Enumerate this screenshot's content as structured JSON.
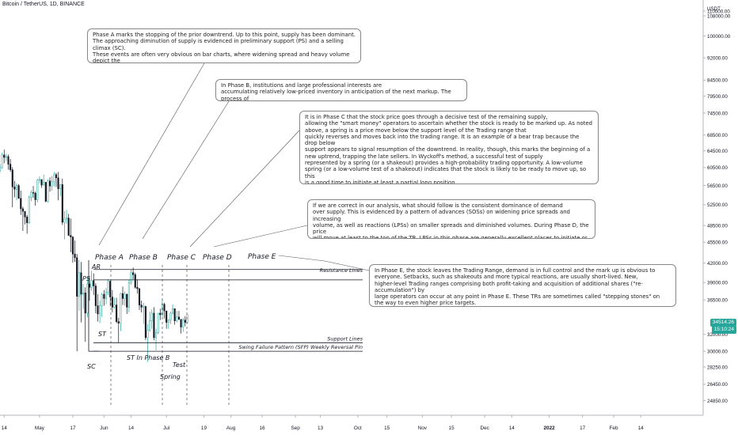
{
  "header": {
    "title": "Bitcoin / TetherUS, 1D, BINANCE"
  },
  "price_axis": {
    "currency_label": "USDT",
    "last_price": "34514.26",
    "countdown": "15:10:24",
    "ticks": [
      "110000.00",
      "108000.00",
      "100000.00",
      "92000.00",
      "84500.00",
      "79500.00",
      "74500.00",
      "68500.00",
      "64500.00",
      "60500.00",
      "56500.00",
      "52500.00",
      "48500.00",
      "45500.00",
      "42000.00",
      "39000.00",
      "36500.00",
      "32000.00",
      "30000.00",
      "28250.00",
      "26450.00",
      "24850.00"
    ]
  },
  "time_axis": {
    "ticks": [
      "14",
      "May",
      "17",
      "Jun",
      "14",
      "Jul",
      "19",
      "Aug",
      "16",
      "Sep",
      "13",
      "Oct",
      "15",
      "Nov",
      "15",
      "Dec",
      "14",
      "2022",
      "17",
      "Feb",
      "14"
    ]
  },
  "notes": [
    {
      "id": "phase-a-note",
      "text": "Phase A marks the stopping of the prior downtrend. Up to this point, supply has been dominant.\nThe approaching diminution of supply is evidenced in preliminary support (PS) and a selling climax (SC).\nThese events are often very obvious on bar charts, where widening spread and heavy volume depict the\ntransfer of huge numbers of shares from the public to large professional interests."
    },
    {
      "id": "phase-b-note",
      "text": "In Phase B, institutions and large professional interests are\naccumulating relatively low-priced inventory in anticipation of the next markup. The process of"
    },
    {
      "id": "phase-c-note",
      "text": "It is in Phase C that the stock price goes through a decisive test of the remaining supply,\nallowing the \"smart money\" operators to ascertain whether the stock is ready to be marked up. As noted\nabove, a spring is a price move below the support level of the Trading range that\nquickly reverses and moves back into the trading range. It is an example of a bear trap because the drop below\nsupport appears to signal resumption of the downtrend. In reality, though, this marks the beginning of a\nnew uptrend, trapping the late sellers. In Wyckoff's method, a successful test of supply\nrepresented by a spring (or a shakeout) provides a high-probability trading opportunity. A low-volume\nspring (or a low-volume test of a shakeout) indicates that the stock is likely to be ready to move up, so this\nis a good time to initiate at least a partial long position."
    },
    {
      "id": "phase-d-note",
      "text": "If we are correct in our analysis, what should follow is the consistent dominance of demand\nover supply. This is evidenced by a pattern of advances (SOSs) on widening price spreads and increasing\nvolume, as well as reactions (LPSs) on smaller spreads and diminished volumes. During Phase D, the price\nwill move at least to the top of the TR. LPSs in this phase are generally excellent places to initiate or add to\nprofitable long positions."
    },
    {
      "id": "phase-e-note",
      "text": " In Phase E, the stock leaves the Trading Range, demand is in full control and the mark up is obvious to\neveryone. Setbacks, such as shakeouts and more typical reactions, are usually short-lived. New,\nhigher-level Trading ranges comprising both profit-taking and acquisition of additional shares (\"re-accumulation\") by\nlarge operators can occur at any point in Phase E. These TRs are sometimes called \"stepping stones\" on\nthe way to even higher price targets."
    }
  ],
  "labels": {
    "phase_a": "Phase A",
    "phase_b": "Phase B",
    "phase_c": "Phase C",
    "phase_d": "Phase D",
    "phase_e": "Phase E",
    "ps": "PS",
    "ar": "AR",
    "sc": "SC",
    "st": "ST",
    "st_phase_b": "ST In Phase B",
    "test": "Test",
    "spring": "Spring",
    "resistance": "Resistance Lines",
    "support": "Support Lines",
    "sfp": "Swing Failure Pattern (SFP) Weekly Reversal Pin"
  },
  "colors": {
    "candle_up": "#26a69a",
    "candle_down": "#131722",
    "line": "#131722",
    "note_border": "#8a8a8a"
  },
  "chart_data": {
    "type": "candlestick",
    "title": "Bitcoin / TetherUS, 1D, BINANCE",
    "y_scale": "log",
    "ylim": [
      23500,
      112000
    ],
    "x_range": [
      "2021-04-12",
      "2022-03-16"
    ],
    "candles": [
      [
        "2021-04-12",
        59800,
        61300,
        59300,
        60500
      ],
      [
        "2021-04-13",
        60500,
        64000,
        60200,
        63500
      ],
      [
        "2021-04-14",
        63500,
        64800,
        61500,
        62900
      ],
      [
        "2021-04-15",
        62900,
        63800,
        62000,
        63100
      ],
      [
        "2021-04-16",
        63100,
        63600,
        60000,
        61300
      ],
      [
        "2021-04-17",
        61300,
        62500,
        59500,
        60000
      ],
      [
        "2021-04-18",
        60000,
        60600,
        52000,
        56200
      ],
      [
        "2021-04-19",
        56200,
        57500,
        54000,
        55700
      ],
      [
        "2021-04-20",
        55700,
        57000,
        53400,
        56500
      ],
      [
        "2021-04-21",
        56500,
        56800,
        53700,
        53800
      ],
      [
        "2021-04-22",
        53800,
        55400,
        50500,
        51700
      ],
      [
        "2021-04-23",
        51700,
        52100,
        47500,
        51200
      ],
      [
        "2021-04-24",
        51200,
        51200,
        48700,
        50100
      ],
      [
        "2021-04-25",
        50100,
        50500,
        47000,
        49000
      ],
      [
        "2021-04-26",
        49000,
        54400,
        48800,
        54000
      ],
      [
        "2021-04-27",
        54000,
        55500,
        53200,
        55000
      ],
      [
        "2021-04-28",
        55000,
        56400,
        53900,
        54900
      ],
      [
        "2021-04-29",
        54900,
        55200,
        52300,
        53500
      ],
      [
        "2021-04-30",
        53500,
        58000,
        53000,
        57700
      ],
      [
        "2021-05-01",
        57700,
        58500,
        57000,
        57800
      ],
      [
        "2021-05-02",
        57800,
        57900,
        56000,
        56600
      ],
      [
        "2021-05-03",
        56600,
        58900,
        56500,
        57200
      ],
      [
        "2021-05-04",
        57200,
        57300,
        53000,
        53200
      ],
      [
        "2021-05-05",
        53200,
        57900,
        52900,
        57500
      ],
      [
        "2021-05-06",
        57500,
        58300,
        55200,
        56400
      ],
      [
        "2021-05-07",
        56400,
        58600,
        55400,
        57300
      ],
      [
        "2021-05-08",
        57300,
        59500,
        56300,
        58900
      ],
      [
        "2021-05-09",
        58900,
        59300,
        56200,
        58200
      ],
      [
        "2021-05-10",
        58200,
        59500,
        53400,
        55800
      ],
      [
        "2021-05-11",
        55800,
        56800,
        54300,
        56700
      ],
      [
        "2021-05-12",
        56700,
        58000,
        48600,
        49100
      ],
      [
        "2021-05-13",
        49100,
        51300,
        46000,
        49700
      ],
      [
        "2021-05-14",
        49700,
        51500,
        48800,
        49900
      ],
      [
        "2021-05-15",
        49900,
        50700,
        46600,
        46700
      ],
      [
        "2021-05-16",
        46700,
        49800,
        43800,
        46400
      ],
      [
        "2021-05-17",
        46400,
        46600,
        42100,
        43500
      ],
      [
        "2021-05-18",
        43500,
        45800,
        42200,
        42900
      ],
      [
        "2021-05-19",
        42900,
        43500,
        30000,
        37000
      ],
      [
        "2021-05-20",
        37000,
        42500,
        35000,
        40500
      ],
      [
        "2021-05-21",
        40500,
        42200,
        33500,
        37300
      ],
      [
        "2021-05-22",
        37300,
        38800,
        35300,
        37500
      ],
      [
        "2021-05-23",
        37500,
        38300,
        31100,
        34700
      ],
      [
        "2021-05-24",
        34700,
        39900,
        34200,
        38800
      ],
      [
        "2021-05-25",
        38800,
        39800,
        36400,
        38300
      ],
      [
        "2021-05-26",
        38300,
        40800,
        37800,
        39300
      ],
      [
        "2021-05-27",
        39300,
        40400,
        37200,
        38500
      ],
      [
        "2021-05-28",
        38500,
        38900,
        34700,
        35700
      ],
      [
        "2021-05-29",
        35700,
        37300,
        33600,
        34600
      ],
      [
        "2021-05-30",
        34600,
        36400,
        33400,
        35700
      ],
      [
        "2021-05-31",
        35700,
        37500,
        34200,
        37300
      ],
      [
        "2021-06-01",
        37300,
        37900,
        35700,
        36700
      ],
      [
        "2021-06-02",
        36700,
        38200,
        35900,
        37600
      ],
      [
        "2021-06-03",
        37600,
        39500,
        37200,
        39200
      ],
      [
        "2021-06-04",
        39200,
        39300,
        35600,
        36900
      ],
      [
        "2021-06-05",
        36900,
        37900,
        34800,
        35500
      ],
      [
        "2021-06-06",
        35500,
        36800,
        35300,
        35800
      ],
      [
        "2021-06-07",
        35800,
        36800,
        33400,
        33600
      ],
      [
        "2021-06-08",
        33600,
        34100,
        31000,
        33400
      ],
      [
        "2021-06-09",
        33400,
        37500,
        32400,
        37400
      ],
      [
        "2021-06-10",
        37400,
        38400,
        35800,
        36700
      ],
      [
        "2021-06-11",
        36700,
        37700,
        35700,
        37300
      ],
      [
        "2021-06-12",
        37300,
        37400,
        34600,
        35500
      ],
      [
        "2021-06-13",
        35500,
        39400,
        34800,
        39000
      ],
      [
        "2021-06-14",
        39000,
        41000,
        38700,
        40500
      ],
      [
        "2021-06-15",
        40500,
        41300,
        39500,
        40200
      ],
      [
        "2021-06-16",
        40200,
        40500,
        38100,
        38300
      ],
      [
        "2021-06-17",
        38300,
        39500,
        37400,
        38100
      ],
      [
        "2021-06-18",
        38100,
        38200,
        35100,
        35800
      ],
      [
        "2021-06-19",
        35800,
        36400,
        34800,
        35500
      ],
      [
        "2021-06-20",
        35500,
        36100,
        33300,
        35600
      ],
      [
        "2021-06-21",
        35600,
        35700,
        31300,
        31600
      ],
      [
        "2021-06-22",
        31600,
        33300,
        28800,
        32500
      ],
      [
        "2021-06-23",
        32500,
        34900,
        32300,
        33700
      ],
      [
        "2021-06-24",
        33700,
        35200,
        32700,
        34700
      ],
      [
        "2021-06-25",
        34700,
        35500,
        31300,
        31600
      ],
      [
        "2021-06-26",
        31600,
        32700,
        30100,
        32200
      ],
      [
        "2021-06-27",
        32200,
        34700,
        32000,
        34700
      ],
      [
        "2021-06-28",
        34700,
        35300,
        33800,
        34500
      ],
      [
        "2021-06-29",
        34500,
        36600,
        34200,
        35900
      ],
      [
        "2021-06-30",
        35900,
        36100,
        34000,
        35000
      ],
      [
        "2021-07-01",
        35000,
        35000,
        32700,
        33500
      ],
      [
        "2021-07-02",
        33500,
        33900,
        32700,
        33800
      ],
      [
        "2021-07-03",
        33800,
        34900,
        33300,
        34700
      ],
      [
        "2021-07-04",
        34700,
        35900,
        34500,
        35300
      ],
      [
        "2021-07-05",
        35300,
        35300,
        33200,
        33700
      ],
      [
        "2021-07-06",
        33700,
        35000,
        33500,
        34200
      ],
      [
        "2021-07-07",
        34200,
        35000,
        33800,
        33900
      ],
      [
        "2021-07-08",
        33900,
        33900,
        32100,
        32900
      ],
      [
        "2021-07-09",
        32900,
        34100,
        32300,
        33800
      ],
      [
        "2021-07-10",
        33800,
        34300,
        33000,
        33500
      ],
      [
        "2021-07-11",
        33500,
        34500,
        33400,
        34514
      ]
    ],
    "horizontal_lines": [
      {
        "label": "Resistance Lines",
        "y": 41000
      },
      {
        "y": 39400
      },
      {
        "label": "Support Lines",
        "y": 31000
      },
      {
        "label": "Swing Failure Pattern (SFP) Weekly Reversal Pin",
        "y": 30000
      }
    ],
    "phase_markers": [
      {
        "label": "Phase A",
        "date": "2021-05-25"
      },
      {
        "label": "Phase B",
        "date": "2021-06-14"
      },
      {
        "label": "Phase C",
        "date": "2021-06-29"
      },
      {
        "label": "Phase D",
        "date": "2021-07-17"
      },
      {
        "label": "Phase E"
      }
    ]
  }
}
